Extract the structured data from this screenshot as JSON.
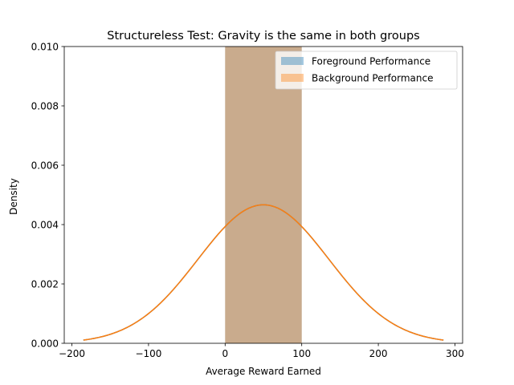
{
  "chart_data": {
    "type": "histogram+kde",
    "title": "Structureless Test: Gravity is the same in both groups",
    "xlabel": "Average Reward Earned",
    "ylabel": "Density",
    "xlim": [
      -210,
      310
    ],
    "ylim": [
      0,
      0.01
    ],
    "xticks": [
      -200,
      -100,
      0,
      100,
      200,
      300
    ],
    "xtick_labels": [
      "−200",
      "−100",
      "0",
      "100",
      "200",
      "300"
    ],
    "yticks": [
      0,
      0.002,
      0.004,
      0.006,
      0.008,
      0.01
    ],
    "ytick_labels": [
      "0.000",
      "0.002",
      "0.004",
      "0.006",
      "0.008",
      "0.010"
    ],
    "legend_position": "top-right",
    "series": [
      {
        "name": "Foreground Performance",
        "color": "#1f77b4",
        "bins": [
          {
            "x0": 0,
            "x1": 100,
            "density": 0.01
          }
        ],
        "kde": {
          "mean": 50,
          "std": 85.5,
          "xmin": -185,
          "xmax": 285
        }
      },
      {
        "name": "Background Performance",
        "color": "#ff7f0e",
        "bins": [
          {
            "x0": 0,
            "x1": 100,
            "density": 0.01
          }
        ],
        "kde": {
          "mean": 50,
          "std": 85.5,
          "xmin": -185,
          "xmax": 285
        }
      }
    ]
  }
}
